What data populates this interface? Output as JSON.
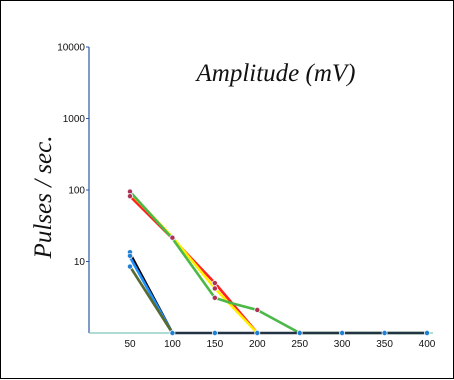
{
  "chart_data": {
    "type": "line",
    "title": "Amplitude (mV)",
    "xlabel": "",
    "ylabel": "Pulses / sec.",
    "x": [
      50,
      100,
      150,
      200,
      250,
      300,
      350,
      400
    ],
    "xticks": [
      "50",
      "100",
      "150",
      "200",
      "250",
      "300",
      "350",
      "400"
    ],
    "yscale": "log",
    "ylim": [
      1,
      10000
    ],
    "yticks": [
      "10",
      "100",
      "1000",
      "10000"
    ],
    "grid": false,
    "legend": "none",
    "baseline_color": "#7ec8b8",
    "y_axis_color": "#2a5aa8",
    "series": [
      {
        "color": "#ff2020",
        "points": [
          [
            50,
            82
          ],
          [
            100,
            21
          ],
          [
            150,
            5
          ],
          [
            200,
            1
          ]
        ]
      },
      {
        "color": "#ffee00",
        "points": [
          [
            50,
            92
          ],
          [
            100,
            22
          ],
          [
            150,
            4.2
          ],
          [
            200,
            1
          ]
        ]
      },
      {
        "color": "#4cb848",
        "points": [
          [
            50,
            95
          ],
          [
            100,
            21
          ],
          [
            150,
            3.1
          ],
          [
            170,
            2.6
          ],
          [
            200,
            2.1
          ],
          [
            250,
            1
          ],
          [
            300,
            1
          ],
          [
            350,
            1
          ],
          [
            400,
            1
          ]
        ]
      },
      {
        "color": "#000000",
        "points": [
          [
            50,
            13
          ],
          [
            100,
            1
          ]
        ]
      },
      {
        "color": "#1e90ff",
        "points": [
          [
            50,
            11.5
          ],
          [
            100,
            1
          ]
        ]
      },
      {
        "color": "#556b2f",
        "points": [
          [
            50,
            8.5
          ],
          [
            100,
            1
          ]
        ]
      },
      {
        "color": "#223344",
        "points": [
          [
            100,
            1
          ],
          [
            150,
            1
          ],
          [
            200,
            1
          ],
          [
            250,
            1
          ],
          [
            300,
            1
          ],
          [
            350,
            1
          ],
          [
            400,
            1
          ]
        ]
      }
    ],
    "markers": [
      {
        "x": 50,
        "y": 95,
        "color": "#b03050"
      },
      {
        "x": 50,
        "y": 82,
        "color": "#b03050"
      },
      {
        "x": 100,
        "y": 21.5,
        "color": "#b03050"
      },
      {
        "x": 150,
        "y": 5,
        "color": "#b03050"
      },
      {
        "x": 150,
        "y": 4.2,
        "color": "#b03050"
      },
      {
        "x": 150,
        "y": 3.1,
        "color": "#b03050"
      },
      {
        "x": 200,
        "y": 2.1,
        "color": "#b03050"
      },
      {
        "x": 50,
        "y": 13.5,
        "color": "#1f7fd0"
      },
      {
        "x": 50,
        "y": 12,
        "color": "#1f7fd0"
      },
      {
        "x": 50,
        "y": 8.5,
        "color": "#1f7fd0"
      },
      {
        "x": 100,
        "y": 1,
        "color": "#1f7fd0"
      },
      {
        "x": 150,
        "y": 1,
        "color": "#1f7fd0"
      },
      {
        "x": 200,
        "y": 1,
        "color": "#1f7fd0"
      },
      {
        "x": 250,
        "y": 1,
        "color": "#1f7fd0"
      },
      {
        "x": 300,
        "y": 1,
        "color": "#1f7fd0"
      },
      {
        "x": 350,
        "y": 1,
        "color": "#1f7fd0"
      },
      {
        "x": 400,
        "y": 1,
        "color": "#1f7fd0"
      }
    ]
  }
}
